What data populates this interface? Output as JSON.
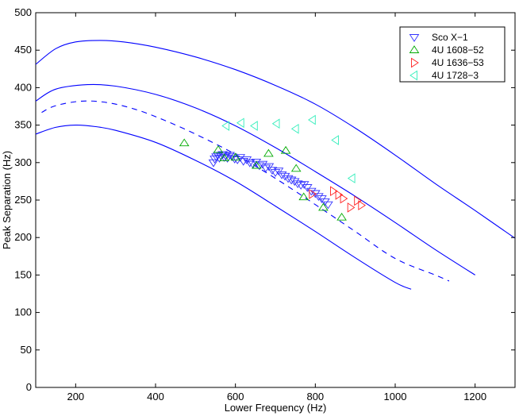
{
  "chart_data": {
    "type": "scatter",
    "title": "",
    "xlabel": "Lower Frequency (Hz)",
    "ylabel": "Peak Separation (Hz)",
    "xlim": [
      100,
      1300
    ],
    "ylim": [
      0,
      500
    ],
    "xticks": [
      200,
      400,
      600,
      800,
      1000,
      1200
    ],
    "yticks": [
      0,
      50,
      100,
      150,
      200,
      250,
      300,
      350,
      400,
      450,
      500
    ],
    "legend_position": "top-right",
    "model_curves": [
      {
        "name": "upper",
        "style": "solid",
        "color": "#0000ff",
        "x": [
          100,
          150,
          200,
          260,
          320,
          400,
          500,
          600,
          700,
          800,
          900,
          1000,
          1100,
          1200,
          1300
        ],
        "y": [
          431,
          452,
          461,
          463,
          461,
          454,
          441,
          424,
          403,
          378,
          346,
          310,
          272,
          236,
          199
        ]
      },
      {
        "name": "middle",
        "style": "solid",
        "color": "#0000ff",
        "x": [
          100,
          150,
          230,
          300,
          400,
          500,
          600,
          700,
          800,
          900,
          1000,
          1100,
          1200
        ],
        "y": [
          382,
          398,
          404,
          402,
          391,
          373,
          349,
          320,
          288,
          255,
          220,
          184,
          150
        ]
      },
      {
        "name": "dashed",
        "style": "dashed",
        "color": "#0000ff",
        "x": [
          115,
          150,
          215,
          280,
          350,
          420,
          500,
          600,
          700,
          800,
          900,
          1000,
          1100,
          1135
        ],
        "y": [
          367,
          376,
          382,
          380,
          371,
          357,
          338,
          311,
          279,
          244,
          208,
          172,
          150,
          142
        ]
      },
      {
        "name": "lower",
        "style": "solid",
        "color": "#0000ff",
        "x": [
          100,
          150,
          200,
          250,
          300,
          400,
          500,
          600,
          700,
          800,
          900,
          1000,
          1040
        ],
        "y": [
          338,
          347,
          350,
          348,
          343,
          327,
          303,
          275,
          242,
          208,
          173,
          140,
          131
        ]
      }
    ],
    "series": [
      {
        "name": "Sco X−1",
        "marker": "triangle-down",
        "color": "#3333ff",
        "x": [
          545,
          548,
          552,
          556,
          560,
          564,
          568,
          572,
          576,
          580,
          586,
          592,
          598,
          605,
          612,
          620,
          628,
          636,
          644,
          652,
          660,
          668,
          676,
          684,
          692,
          700,
          708,
          716,
          724,
          732,
          740,
          748,
          756,
          764,
          772,
          780,
          790,
          800,
          808,
          816,
          824,
          832
        ],
        "y": [
          300,
          305,
          308,
          310,
          306,
          309,
          311,
          307,
          309,
          306,
          310,
          308,
          305,
          304,
          307,
          302,
          304,
          300,
          298,
          301,
          296,
          298,
          293,
          295,
          290,
          287,
          289,
          284,
          282,
          279,
          277,
          275,
          272,
          270,
          271,
          267,
          262,
          259,
          255,
          252,
          248,
          244
        ]
      },
      {
        "name": "4U 1608−52",
        "marker": "triangle-up",
        "color": "#00aa00",
        "x": [
          472,
          557,
          572,
          600,
          653,
          683,
          726,
          752,
          771,
          820,
          866
        ],
        "y": [
          326,
          317,
          306,
          307,
          296,
          312,
          316,
          292,
          254,
          240,
          227
        ]
      },
      {
        "name": "4U 1636−53",
        "marker": "triangle-right",
        "color": "#ff2020",
        "x": [
          792,
          845,
          858,
          870,
          888,
          905,
          915
        ],
        "y": [
          258,
          262,
          257,
          252,
          240,
          249,
          243
        ]
      },
      {
        "name": "4U 1728−3",
        "marker": "triangle-left",
        "color": "#33eebb",
        "x": [
          577,
          614,
          648,
          703,
          751,
          793,
          851,
          892
        ],
        "y": [
          349,
          353,
          349,
          352,
          345,
          357,
          330,
          279
        ]
      }
    ]
  }
}
